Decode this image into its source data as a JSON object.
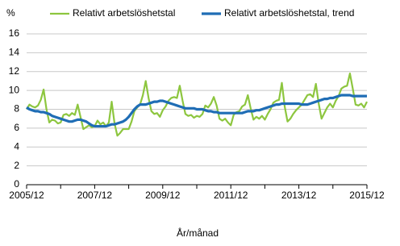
{
  "chart_data": {
    "type": "line",
    "y_label": "%",
    "x_label": "År/månad",
    "categories": [
      "2005/12",
      null,
      null,
      null,
      null,
      null,
      null,
      null,
      null,
      null,
      null,
      null,
      null,
      null,
      null,
      null,
      null,
      null,
      null,
      null,
      null,
      null,
      null,
      null,
      "2007/12",
      null,
      null,
      null,
      null,
      null,
      null,
      null,
      null,
      null,
      null,
      null,
      null,
      null,
      null,
      null,
      null,
      null,
      null,
      null,
      null,
      null,
      null,
      null,
      "2009/12",
      null,
      null,
      null,
      null,
      null,
      null,
      null,
      null,
      null,
      null,
      null,
      null,
      null,
      null,
      null,
      null,
      null,
      null,
      null,
      null,
      null,
      null,
      null,
      "2011/12",
      null,
      null,
      null,
      null,
      null,
      null,
      null,
      null,
      null,
      null,
      null,
      null,
      null,
      null,
      null,
      null,
      null,
      null,
      null,
      null,
      null,
      null,
      null,
      "2013/12",
      null,
      null,
      null,
      null,
      null,
      null,
      null,
      null,
      null,
      null,
      null,
      null,
      null,
      null,
      null,
      null,
      null,
      null,
      null,
      null,
      null,
      null,
      null,
      "2015/12"
    ],
    "series": [
      {
        "name": "Relativt arbetslöshetstal",
        "color": "#8dc63f",
        "width": 2.2,
        "values": [
          8.0,
          8.5,
          8.3,
          8.2,
          8.4,
          9.0,
          10.1,
          8.0,
          6.6,
          6.9,
          6.8,
          6.5,
          6.6,
          7.4,
          7.5,
          7.3,
          7.6,
          7.4,
          8.5,
          7.2,
          5.9,
          6.1,
          6.3,
          6.1,
          6.2,
          6.8,
          6.4,
          6.6,
          6.2,
          6.6,
          8.8,
          6.5,
          5.2,
          5.5,
          5.9,
          5.9,
          5.9,
          6.7,
          7.8,
          8.2,
          8.5,
          9.5,
          11.0,
          9.2,
          7.8,
          7.5,
          7.6,
          7.2,
          7.9,
          8.3,
          8.9,
          9.2,
          9.3,
          9.2,
          10.5,
          8.9,
          7.5,
          7.3,
          7.4,
          7.1,
          7.3,
          7.2,
          7.5,
          8.4,
          8.2,
          8.6,
          9.3,
          8.4,
          7.0,
          6.8,
          7.0,
          6.6,
          6.3,
          7.4,
          7.7,
          7.8,
          8.3,
          8.5,
          9.5,
          8.1,
          6.9,
          7.2,
          7.0,
          7.3,
          6.9,
          7.5,
          8.0,
          8.7,
          8.9,
          9.0,
          10.8,
          8.3,
          6.7,
          7.0,
          7.5,
          7.9,
          8.2,
          8.5,
          9.0,
          9.5,
          9.6,
          9.3,
          10.7,
          8.6,
          7.0,
          7.6,
          8.2,
          8.6,
          8.2,
          8.9,
          9.4,
          10.2,
          10.4,
          10.5,
          11.8,
          10.2,
          8.5,
          8.4,
          8.6,
          8.2,
          8.8
        ]
      },
      {
        "name": "Relativt arbetslöshetstal, trend",
        "color": "#1f6db5",
        "width": 3.2,
        "values": [
          8.2,
          8.0,
          7.9,
          7.8,
          7.8,
          7.7,
          7.7,
          7.6,
          7.5,
          7.3,
          7.2,
          7.1,
          7.0,
          6.9,
          6.8,
          6.7,
          6.7,
          6.8,
          6.9,
          6.9,
          6.8,
          6.7,
          6.5,
          6.3,
          6.2,
          6.2,
          6.2,
          6.2,
          6.2,
          6.3,
          6.4,
          6.4,
          6.5,
          6.6,
          6.7,
          6.9,
          7.2,
          7.6,
          8.0,
          8.3,
          8.5,
          8.5,
          8.5,
          8.6,
          8.7,
          8.8,
          8.8,
          8.9,
          8.9,
          8.8,
          8.7,
          8.6,
          8.5,
          8.4,
          8.3,
          8.2,
          8.1,
          8.1,
          8.1,
          8.1,
          8.0,
          8.0,
          8.0,
          7.9,
          7.8,
          7.8,
          7.7,
          7.7,
          7.6,
          7.6,
          7.6,
          7.6,
          7.6,
          7.6,
          7.6,
          7.6,
          7.6,
          7.7,
          7.8,
          7.8,
          7.8,
          7.9,
          7.9,
          8.0,
          8.1,
          8.2,
          8.3,
          8.4,
          8.5,
          8.5,
          8.6,
          8.6,
          8.6,
          8.6,
          8.6,
          8.6,
          8.6,
          8.5,
          8.5,
          8.5,
          8.6,
          8.7,
          8.8,
          8.9,
          9.0,
          9.1,
          9.1,
          9.2,
          9.2,
          9.3,
          9.4,
          9.5,
          9.5,
          9.5,
          9.5,
          9.4,
          9.4,
          9.4,
          9.4,
          9.4,
          9.4
        ]
      }
    ],
    "ylim": [
      0,
      16
    ],
    "yticks": [
      0,
      2,
      4,
      6,
      8,
      10,
      12,
      14,
      16
    ],
    "grid": true
  }
}
